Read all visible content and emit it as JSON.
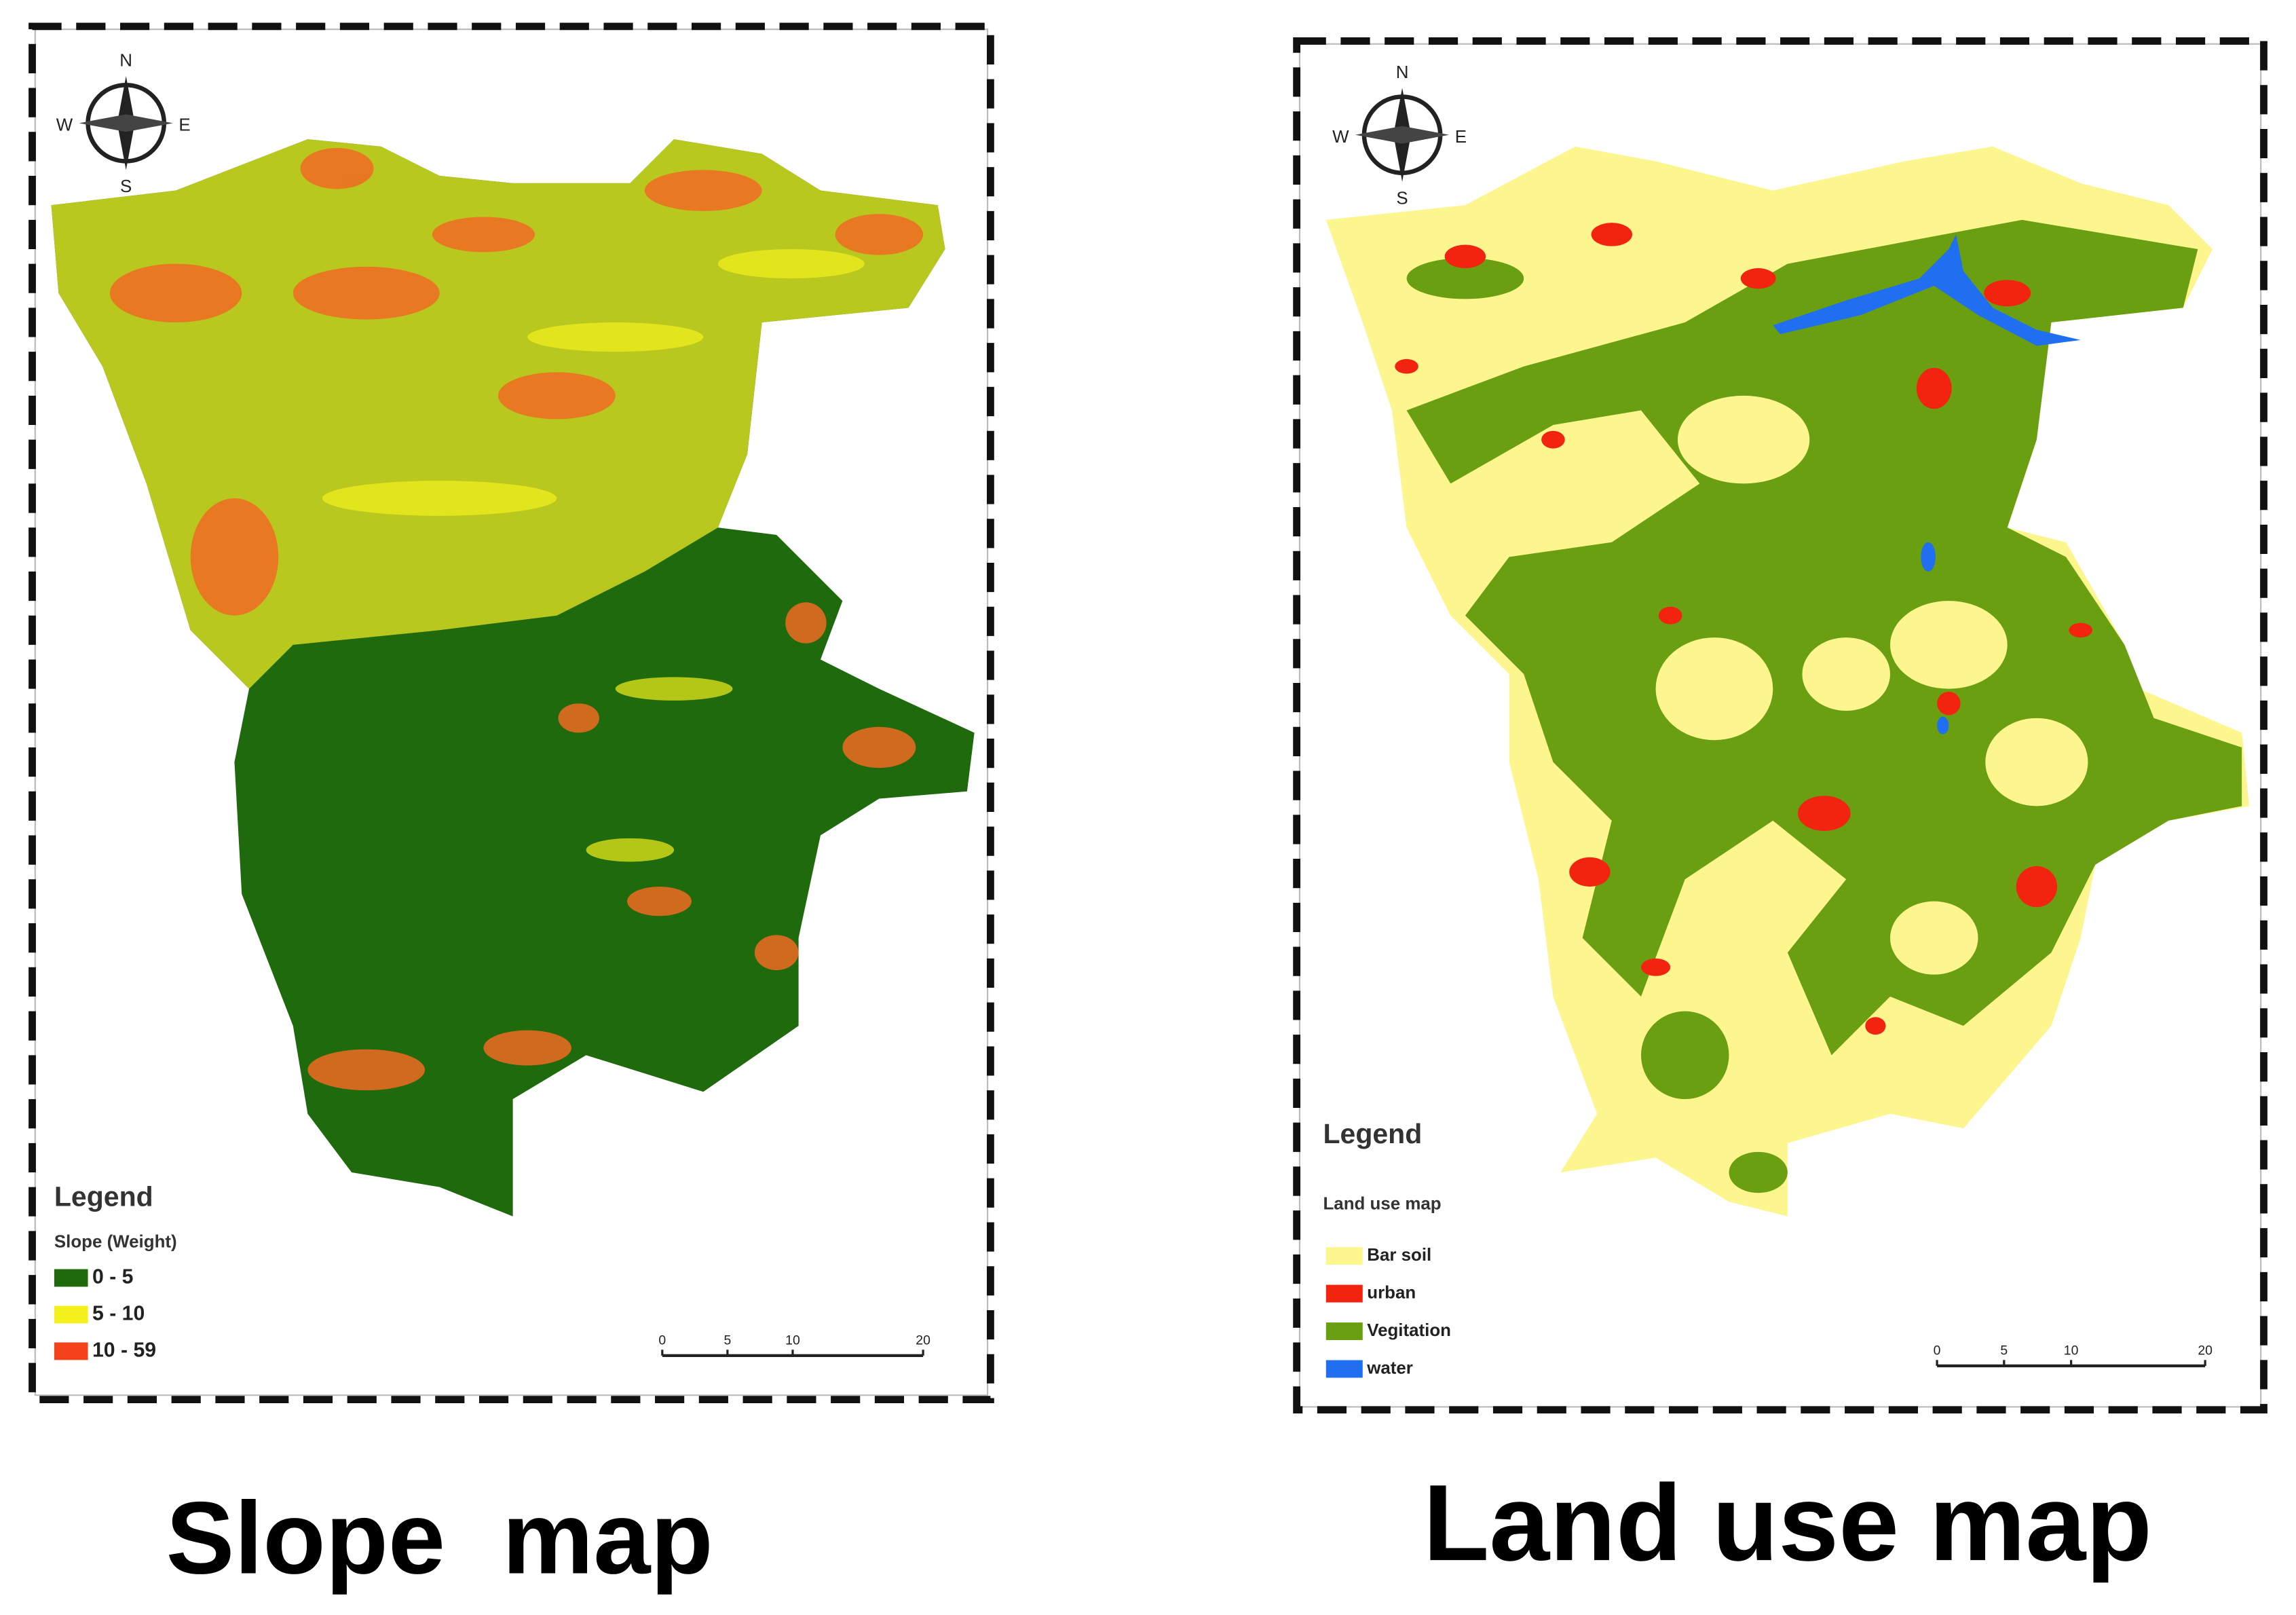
{
  "maps": [
    {
      "caption": "Slope  map",
      "compass": {
        "n": "N",
        "s": "S",
        "e": "E",
        "w": "W"
      },
      "legend_title": "Legend",
      "legend_subtitle": "Slope (Weight)",
      "legend_items": [
        {
          "label": "0 - 5",
          "color": "#1e6a0c"
        },
        {
          "label": "5 - 10",
          "color": "#f4f01c"
        },
        {
          "label": "10 - 59",
          "color": "#f2421c"
        }
      ],
      "scale_ticks": [
        0,
        5,
        10,
        20
      ]
    },
    {
      "caption": "Land use map",
      "compass": {
        "n": "N",
        "s": "S",
        "e": "E",
        "w": "W"
      },
      "legend_title": "Legend",
      "legend_subtitle": "Land use map",
      "legend_items": [
        {
          "label": "Bar soil",
          "color": "#fdf68f"
        },
        {
          "label": "urban",
          "color": "#f2230f"
        },
        {
          "label": "Vegitation",
          "color": "#6a9f12"
        },
        {
          "label": "water",
          "color": "#1f6ff0"
        }
      ],
      "scale_ticks": [
        0,
        5,
        10,
        20
      ]
    }
  ]
}
